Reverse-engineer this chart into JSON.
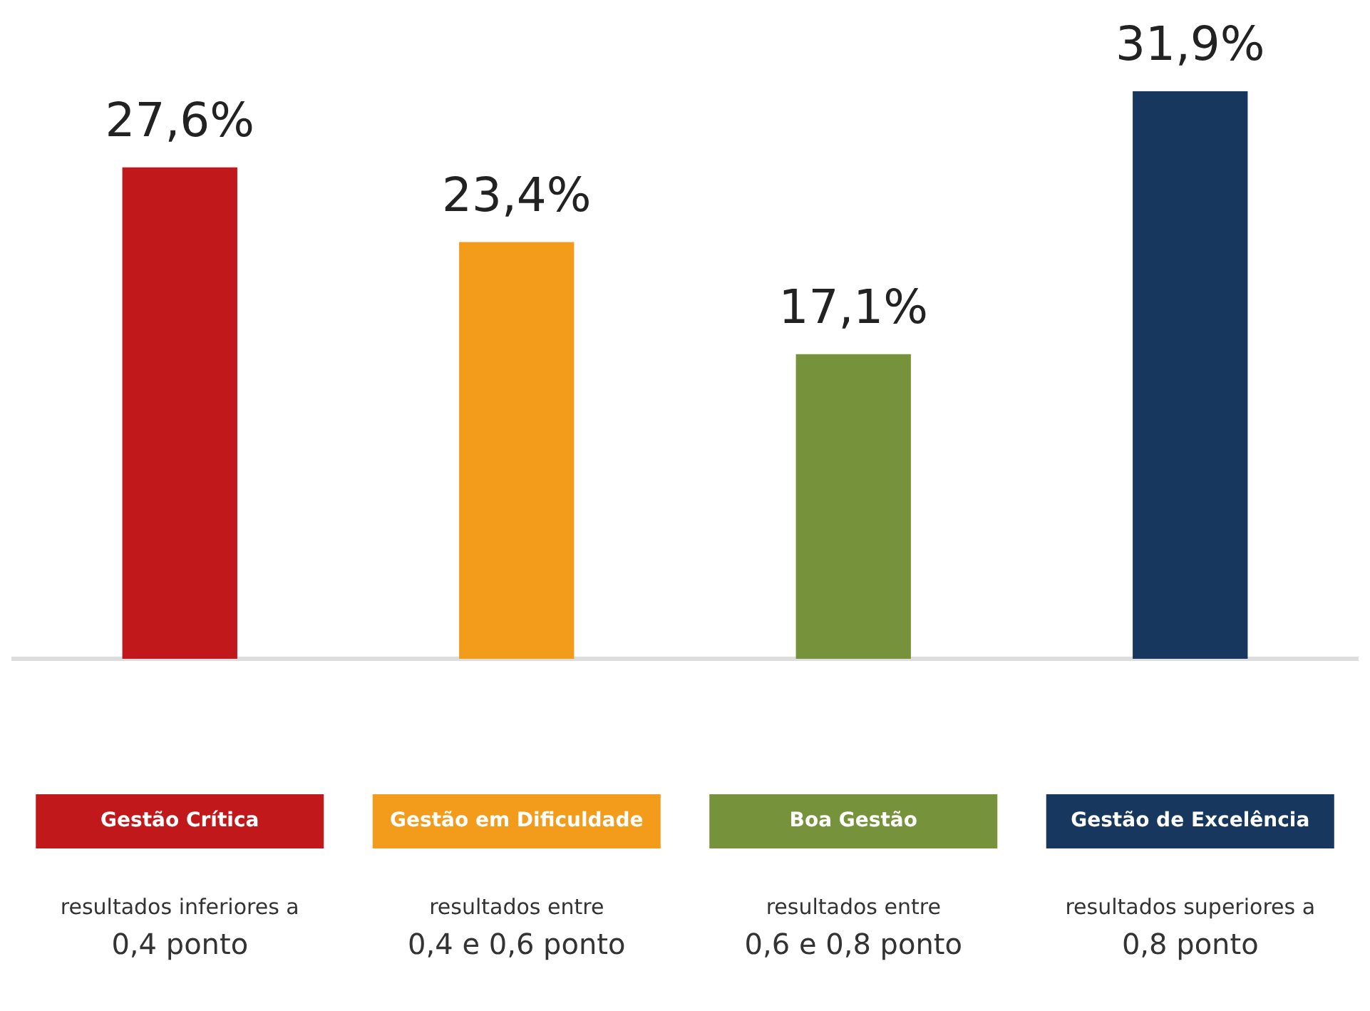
{
  "chart_data": {
    "type": "bar",
    "categories": [
      "Gestão Crítica",
      "Gestão em Dificuldade",
      "Boa Gestão",
      "Gestão de Excelência"
    ],
    "values": [
      27.6,
      23.4,
      17.1,
      31.9
    ],
    "value_labels": [
      "27,6%",
      "23,4%",
      "17,1%",
      "31,9%"
    ],
    "colors": [
      "#c0181b",
      "#f39c1c",
      "#76923b",
      "#17375e"
    ],
    "annotations": [
      "resultados inferiores a\n0,4 ponto",
      "resultados entre\n0,4 e 0,6 ponto",
      "resultados entre\n0,6 e 0,8 ponto",
      "resultados superiores a\n0,8 ponto"
    ],
    "grid": false,
    "legend": false
  }
}
